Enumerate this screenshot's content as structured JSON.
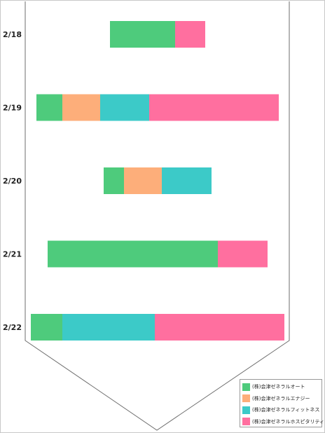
{
  "chart_data": {
    "type": "bar",
    "orientation": "horizontal",
    "stacked": true,
    "categories": [
      "2/18",
      "2/19",
      "2/20",
      "2/21",
      "2/22"
    ],
    "series": [
      {
        "name": "(株)会津ゼネラルオート",
        "color": "#4ecb7c",
        "values": [
          93,
          37,
          29,
          243,
          45
        ]
      },
      {
        "name": "(株)会津ゼネラルエナジー",
        "color": "#fdae7a",
        "values": [
          0,
          54,
          54,
          0,
          0
        ]
      },
      {
        "name": "(株)会津ゼネラルフィットネス",
        "color": "#3ccac8",
        "values": [
          0,
          70,
          71,
          0,
          132
        ]
      },
      {
        "name": "(株)会津ゼネラルホスピタリティ",
        "color": "#ff6f9f",
        "values": [
          43,
          185,
          0,
          71,
          185
        ]
      }
    ],
    "legend_position": "bottom-right",
    "grid": false
  }
}
